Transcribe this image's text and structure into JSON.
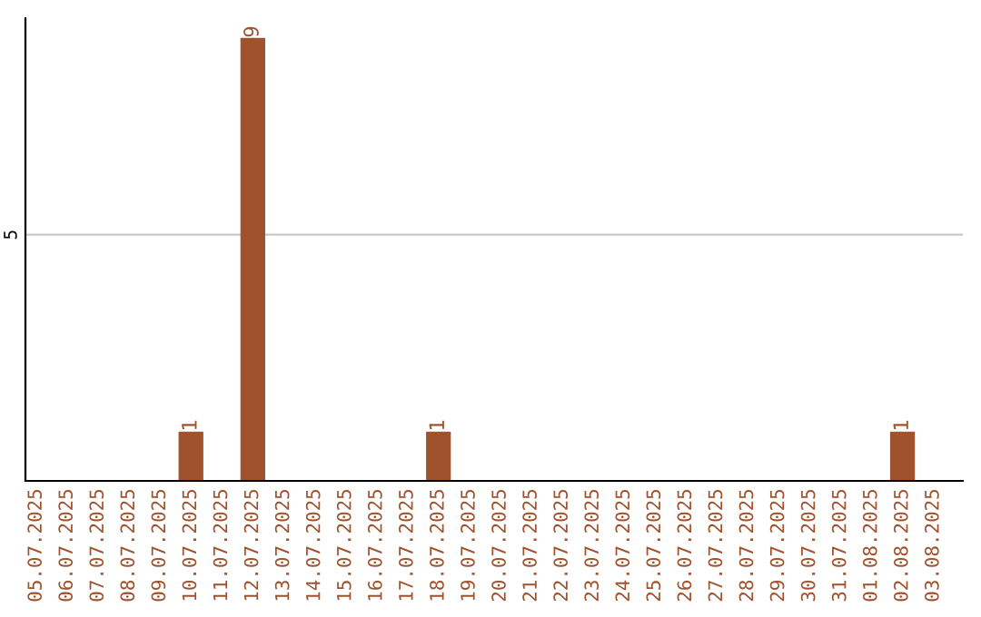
{
  "chart_data": {
    "type": "bar",
    "categories": [
      "05.07.2025",
      "06.07.2025",
      "07.07.2025",
      "08.07.2025",
      "09.07.2025",
      "10.07.2025",
      "11.07.2025",
      "12.07.2025",
      "13.07.2025",
      "14.07.2025",
      "15.07.2025",
      "16.07.2025",
      "17.07.2025",
      "18.07.2025",
      "19.07.2025",
      "20.07.2025",
      "21.07.2025",
      "22.07.2025",
      "23.07.2025",
      "24.07.2025",
      "25.07.2025",
      "26.07.2025",
      "27.07.2025",
      "28.07.2025",
      "29.07.2025",
      "30.07.2025",
      "31.07.2025",
      "01.08.2025",
      "02.08.2025",
      "03.08.2025"
    ],
    "values": [
      0,
      0,
      0,
      0,
      0,
      1,
      0,
      9,
      0,
      0,
      0,
      0,
      0,
      1,
      0,
      0,
      0,
      0,
      0,
      0,
      0,
      0,
      0,
      0,
      0,
      0,
      0,
      0,
      1,
      0
    ],
    "value_labels": [
      null,
      null,
      null,
      null,
      null,
      "1",
      null,
      "9",
      null,
      null,
      null,
      null,
      null,
      "1",
      null,
      null,
      null,
      null,
      null,
      null,
      null,
      null,
      null,
      null,
      null,
      null,
      null,
      null,
      "1",
      null
    ],
    "color": "#a0522d",
    "ylim": [
      0,
      9.4
    ],
    "yticks": [
      5
    ],
    "grid": "y"
  }
}
